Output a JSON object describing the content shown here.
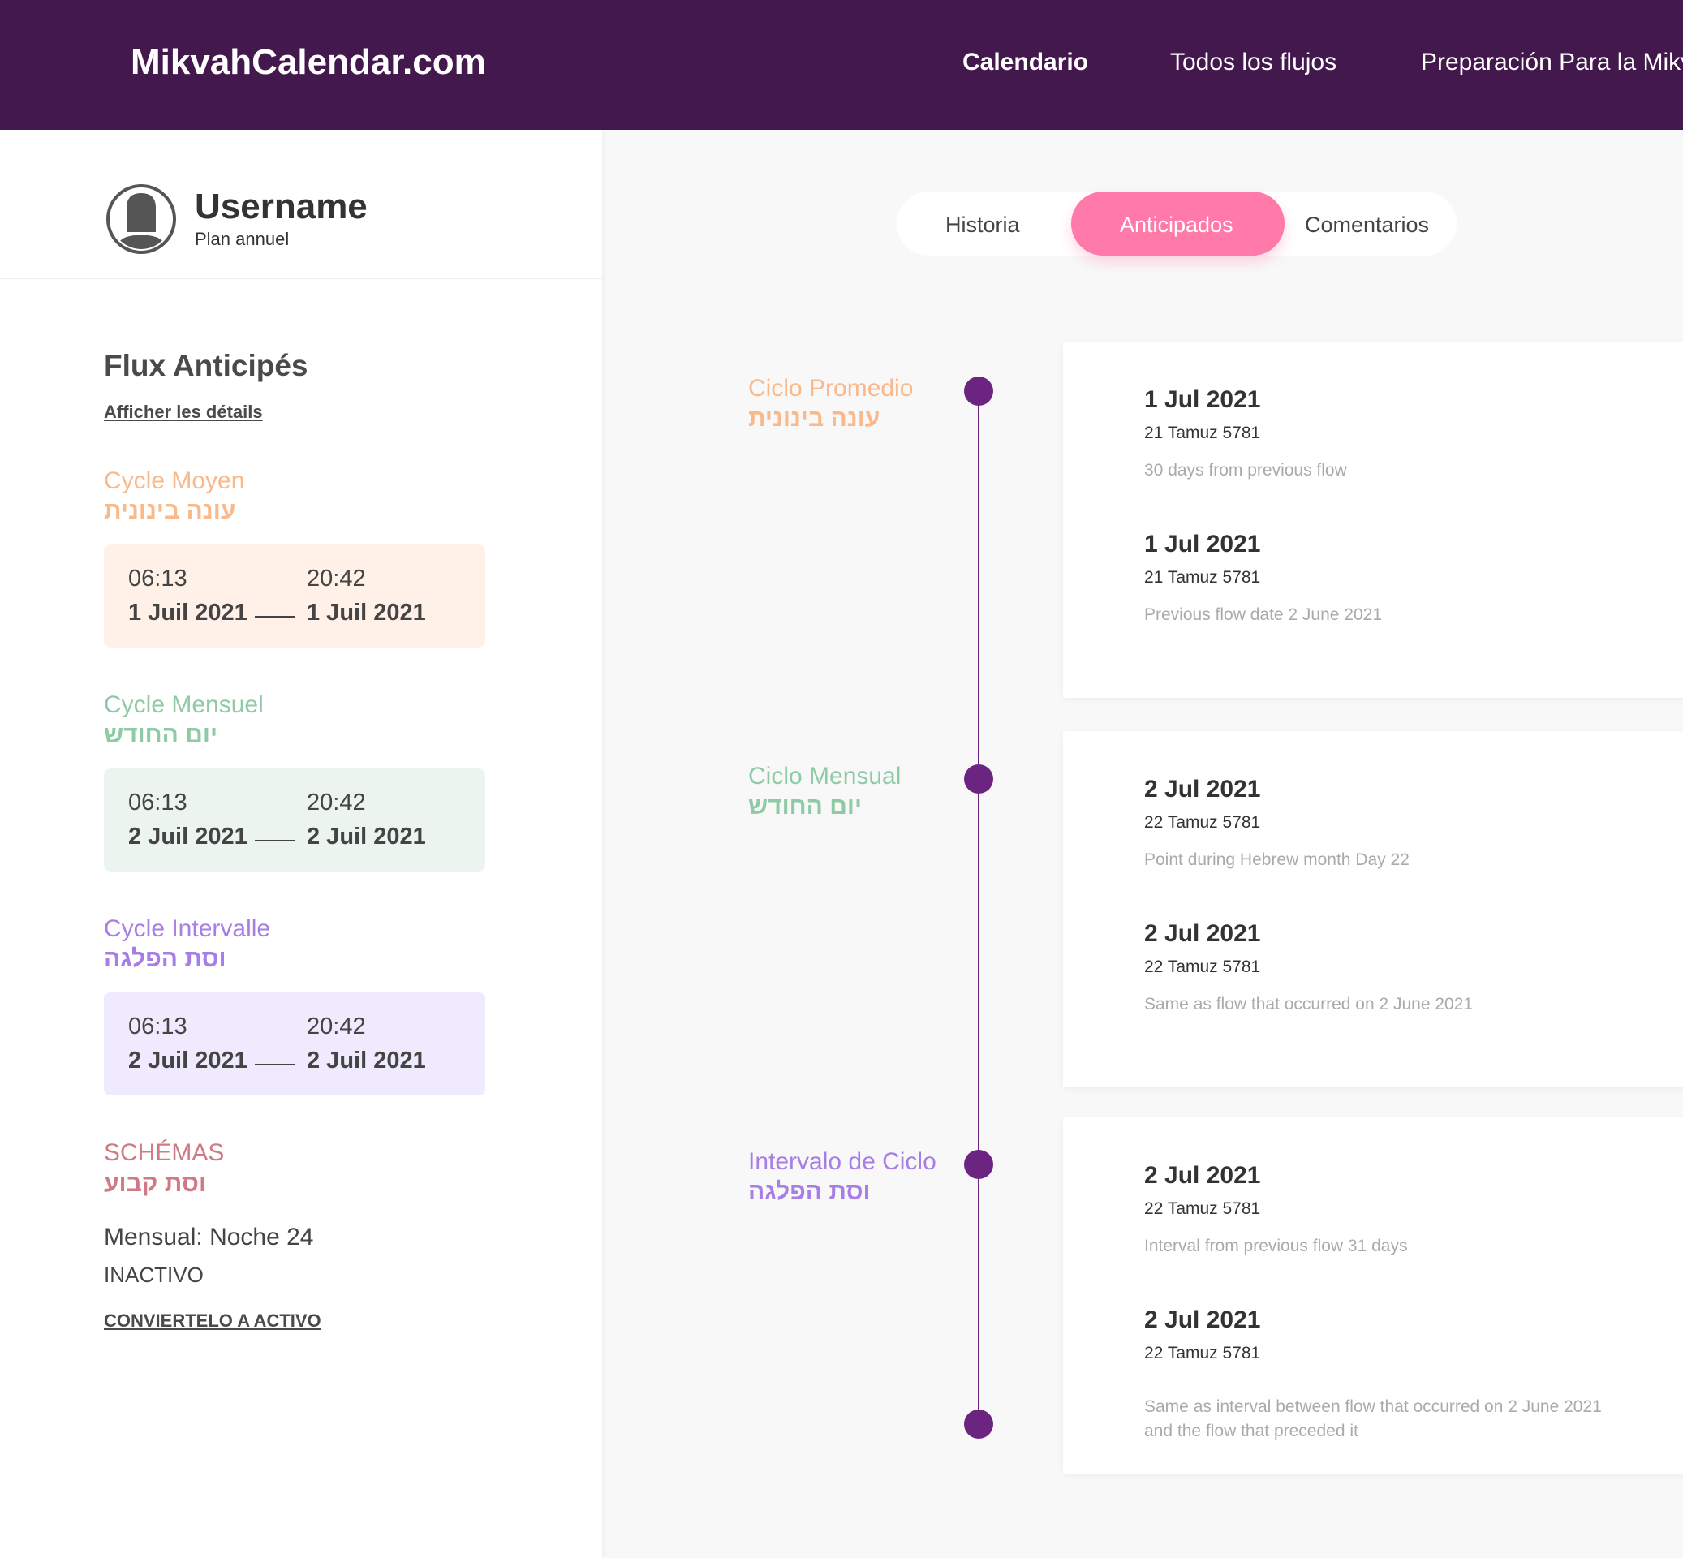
{
  "header": {
    "logo": "MikvahCalendar.com",
    "nav": [
      "Calendario",
      "Todos los flujos",
      "Preparación Para la Mikv"
    ]
  },
  "user": {
    "name": "Username",
    "plan": "Plan annuel"
  },
  "sidebar": {
    "title": "Flux Anticipés",
    "details_link": "Afficher les détails",
    "cycles": [
      {
        "name": "Cycle Moyen",
        "hebrew": "עונה בינונית",
        "start_time": "06:13",
        "end_time": "20:42",
        "start_date": "1 Juil 2021",
        "end_date": "1 Juil 2021",
        "color": "#f9b98a",
        "bg": "#fff1e8"
      },
      {
        "name": "Cycle Mensuel",
        "hebrew": "יום החודש",
        "start_time": "06:13",
        "end_time": "20:42",
        "start_date": "2 Juil 2021",
        "end_date": "2 Juil 2021",
        "color": "#8ecaa5",
        "bg": "#ebf4ee"
      },
      {
        "name": "Cycle Intervalle",
        "hebrew": "וסת הפלגה",
        "start_time": "06:13",
        "end_time": "20:42",
        "start_date": "2 Juil 2021",
        "end_date": "2 Juil 2021",
        "color": "#a77de6",
        "bg": "#efeafd"
      }
    ],
    "patterns": {
      "title": "SCHÉMAS",
      "hebrew": "וסת קבוע",
      "color": "#d07a86",
      "value": "Mensual: Noche 24",
      "status": "INACTIVO",
      "action": "CONVIERTELO A ACTIVO"
    }
  },
  "tabs": {
    "items": [
      "Historia",
      "Anticipados",
      "Comentarios"
    ],
    "active": "Anticipados",
    "active_color": "#ff7aa8"
  },
  "timeline": {
    "color": "#6b2480",
    "groups": [
      {
        "label": "Ciclo Promedio",
        "hebrew": "עונה בינונית",
        "color": "#f9b98a",
        "entries": [
          {
            "date": "1 Jul 2021",
            "hebrew_date": "21 Tamuz 5781",
            "note": "30 days from previous flow"
          },
          {
            "date": "1 Jul 2021",
            "hebrew_date": "21 Tamuz 5781",
            "note": "Previous flow date  2 June 2021"
          }
        ]
      },
      {
        "label": "Ciclo Mensual",
        "hebrew": "יום החודש",
        "color": "#8ecaa5",
        "entries": [
          {
            "date": "2 Jul 2021",
            "hebrew_date": "22 Tamuz 5781",
            "note": "Point during Hebrew month Day 22"
          },
          {
            "date": "2 Jul 2021",
            "hebrew_date": "22 Tamuz 5781",
            "note": "Same as flow that occurred on  2 June 2021"
          }
        ]
      },
      {
        "label": "Intervalo de Ciclo",
        "hebrew": "וסת הפלגה",
        "color": "#a77de6",
        "entries": [
          {
            "date": "2 Jul 2021",
            "hebrew_date": "22 Tamuz 5781",
            "note": "Interval from previous flow  31 days"
          },
          {
            "date": "2 Jul 2021",
            "hebrew_date": "22 Tamuz 5781",
            "note": "Same as interval between flow that occurred on  2 June 2021",
            "note2": "and the flow that preceded it"
          }
        ]
      }
    ]
  }
}
